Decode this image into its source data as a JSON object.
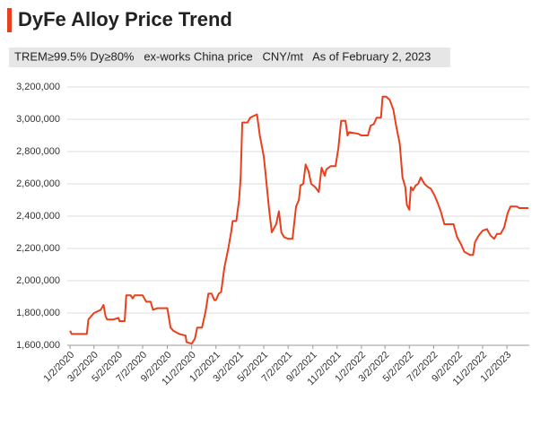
{
  "chart_data": {
    "type": "line",
    "title": "DyFe Alloy Price Trend",
    "subtitle": "TREM≥99.5% Dy≥80%   ex-works China price   CNY/mt   As of February 2, 2023",
    "x": [
      "1/2/2020",
      "1/6/2020",
      "2/13/2020",
      "2/17/2020",
      "3/2/2020",
      "3/19/2020",
      "3/26/2020",
      "3/31/2020",
      "4/4/2020",
      "4/20/2020",
      "5/2/2020",
      "5/5/2020",
      "5/18/2020",
      "5/22/2020",
      "6/2/2020",
      "6/7/2020",
      "6/12/2020",
      "7/2/2020",
      "7/11/2020",
      "7/22/2020",
      "7/28/2020",
      "8/8/2020",
      "9/2/2020",
      "9/10/2020",
      "9/17/2020",
      "10/2/2020",
      "10/18/2020",
      "10/20/2020",
      "11/2/2020",
      "11/10/2020",
      "11/16/2020",
      "11/28/2020",
      "12/7/2020",
      "12/14/2020",
      "12/22/2020",
      "12/29/2020",
      "1/2/2021",
      "1/9/2021",
      "1/15/2021",
      "1/23/2021",
      "2/2/2021",
      "2/9/2021",
      "2/13/2021",
      "2/22/2021",
      "3/1/2021",
      "3/5/2021",
      "3/9/2021",
      "3/22/2021",
      "3/29/2021",
      "4/6/2021",
      "4/15/2021",
      "4/22/2021",
      "5/2/2021",
      "5/9/2021",
      "5/15/2021",
      "5/22/2021",
      "6/2/2021",
      "6/9/2021",
      "6/15/2021",
      "6/22/2021",
      "7/2/2021",
      "7/13/2021",
      "7/22/2021",
      "7/29/2021",
      "8/2/2021",
      "8/9/2021",
      "8/15/2021",
      "8/22/2021",
      "8/29/2021",
      "9/8/2021",
      "9/17/2021",
      "9/24/2021",
      "10/2/2021",
      "10/6/2021",
      "10/17/2021",
      "10/29/2021",
      "11/5/2021",
      "11/12/2021",
      "11/23/2021",
      "11/28/2021",
      "12/2/2021",
      "12/25/2021",
      "1/2/2022",
      "1/18/2022",
      "1/25/2022",
      "2/2/2022",
      "2/9/2022",
      "2/20/2022",
      "2/24/2022",
      "3/5/2022",
      "3/14/2022",
      "3/23/2022",
      "3/30/2022",
      "4/8/2022",
      "4/15/2022",
      "4/22/2022",
      "4/26/2022",
      "5/2/2022",
      "5/6/2022",
      "5/11/2022",
      "5/18/2022",
      "5/24/2022",
      "5/31/2022",
      "6/9/2022",
      "6/18/2022",
      "6/25/2022",
      "7/4/2022",
      "7/11/2022",
      "7/20/2022",
      "7/29/2022",
      "8/21/2022",
      "8/30/2022",
      "9/8/2022",
      "9/17/2022",
      "9/24/2022",
      "10/1/2022",
      "10/9/2022",
      "10/14/2022",
      "10/23/2022",
      "11/2/2022",
      "11/13/2022",
      "11/17/2022",
      "11/22/2022",
      "12/1/2022",
      "12/8/2022",
      "12/17/2022",
      "12/26/2022",
      "1/4/2023",
      "1/11/2023",
      "1/27/2023",
      "2/2/2023",
      "2/25/2023"
    ],
    "series": [
      {
        "name": "DyFe Alloy",
        "color": "#e8401c",
        "values": [
          1690000,
          1670000,
          1670000,
          1760000,
          1800000,
          1820000,
          1850000,
          1780000,
          1760000,
          1760000,
          1770000,
          1750000,
          1750000,
          1910000,
          1910000,
          1890000,
          1910000,
          1910000,
          1870000,
          1870000,
          1820000,
          1830000,
          1830000,
          1710000,
          1690000,
          1670000,
          1660000,
          1620000,
          1610000,
          1640000,
          1710000,
          1710000,
          1810000,
          1920000,
          1920000,
          1880000,
          1880000,
          1920000,
          1930000,
          2080000,
          2200000,
          2300000,
          2370000,
          2370000,
          2500000,
          2640000,
          2980000,
          2980000,
          3010000,
          3020000,
          3030000,
          2900000,
          2770000,
          2600000,
          2450000,
          2300000,
          2350000,
          2430000,
          2300000,
          2270000,
          2260000,
          2260000,
          2460000,
          2500000,
          2590000,
          2600000,
          2720000,
          2680000,
          2600000,
          2580000,
          2550000,
          2700000,
          2650000,
          2690000,
          2710000,
          2710000,
          2820000,
          2990000,
          2990000,
          2900000,
          2920000,
          2910000,
          2900000,
          2900000,
          2960000,
          2970000,
          3010000,
          3010000,
          3140000,
          3140000,
          3120000,
          3060000,
          2960000,
          2850000,
          2640000,
          2580000,
          2470000,
          2440000,
          2580000,
          2560000,
          2590000,
          2600000,
          2640000,
          2600000,
          2580000,
          2570000,
          2530000,
          2490000,
          2430000,
          2350000,
          2350000,
          2270000,
          2230000,
          2180000,
          2170000,
          2160000,
          2160000,
          2240000,
          2280000,
          2310000,
          2320000,
          2300000,
          2280000,
          2260000,
          2290000,
          2290000,
          2330000,
          2420000,
          2460000,
          2460000,
          2450000,
          2450000
        ]
      }
    ],
    "xlim": [
      "12/26/2019",
      "2/27/2023"
    ],
    "xticks": [
      "1/2/2020",
      "3/2/2020",
      "5/2/2020",
      "7/2/2020",
      "9/2/2020",
      "11/2/2020",
      "1/2/2021",
      "3/2/2021",
      "5/2/2021",
      "7/2/2021",
      "9/2/2021",
      "11/2/2021",
      "1/2/2022",
      "3/2/2022",
      "5/2/2022",
      "7/2/2022",
      "9/2/2022",
      "11/2/2022",
      "1/2/2023"
    ],
    "ylim": [
      1600000,
      3200000
    ],
    "yticks": [
      {
        "value": 1600000,
        "label": "1,600,000"
      },
      {
        "value": 1800000,
        "label": "1,800,000"
      },
      {
        "value": 2000000,
        "label": "2,000,000"
      },
      {
        "value": 2200000,
        "label": "2,200,000"
      },
      {
        "value": 2400000,
        "label": "2,400,000"
      },
      {
        "value": 2600000,
        "label": "2,600,000"
      },
      {
        "value": 2800000,
        "label": "2,800,000"
      },
      {
        "value": 3000000,
        "label": "3,000,000"
      },
      {
        "value": 3200000,
        "label": "3,200,000"
      }
    ],
    "grid": true
  }
}
